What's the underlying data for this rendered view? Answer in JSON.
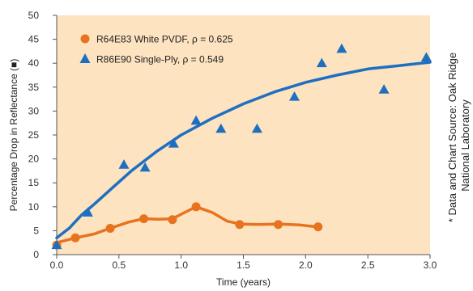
{
  "chart_data": {
    "type": "scatter",
    "xlabel": "Time (years)",
    "ylabel": "Percentage Drop in Reflectance (■)",
    "xlim": [
      0,
      3.0
    ],
    "ylim": [
      0,
      50
    ],
    "x_ticks": [
      "0.0",
      "0.5",
      "1.0",
      "1.5",
      "2.0",
      "2.5",
      "3.0"
    ],
    "y_ticks": [
      "0",
      "5",
      "10",
      "15",
      "20",
      "25",
      "30",
      "35",
      "40",
      "45",
      "50"
    ],
    "grid": false,
    "legend_position": "top-left",
    "background_color": "#fde3c0",
    "series": [
      {
        "name": "R64E83 White PVDF, ρ = 0.625",
        "color": "#e8731f",
        "marker": "circle",
        "points": [
          {
            "x": 0.0,
            "y": 2.0
          },
          {
            "x": 0.15,
            "y": 3.5
          },
          {
            "x": 0.43,
            "y": 5.5
          },
          {
            "x": 0.7,
            "y": 7.5
          },
          {
            "x": 0.93,
            "y": 7.3
          },
          {
            "x": 1.12,
            "y": 10.0
          },
          {
            "x": 1.47,
            "y": 6.3
          },
          {
            "x": 1.78,
            "y": 6.3
          },
          {
            "x": 2.1,
            "y": 5.8
          }
        ],
        "line": [
          {
            "x": 0.0,
            "y": 2.5
          },
          {
            "x": 0.15,
            "y": 3.5
          },
          {
            "x": 0.3,
            "y": 4.3
          },
          {
            "x": 0.43,
            "y": 5.5
          },
          {
            "x": 0.58,
            "y": 6.8
          },
          {
            "x": 0.7,
            "y": 7.5
          },
          {
            "x": 0.82,
            "y": 7.4
          },
          {
            "x": 0.93,
            "y": 7.5
          },
          {
            "x": 1.02,
            "y": 8.7
          },
          {
            "x": 1.12,
            "y": 10.0
          },
          {
            "x": 1.25,
            "y": 8.8
          },
          {
            "x": 1.37,
            "y": 7.0
          },
          {
            "x": 1.47,
            "y": 6.4
          },
          {
            "x": 1.62,
            "y": 6.3
          },
          {
            "x": 1.78,
            "y": 6.4
          },
          {
            "x": 1.95,
            "y": 6.2
          },
          {
            "x": 2.1,
            "y": 5.8
          }
        ]
      },
      {
        "name": "R86E90 Single-Ply, ρ = 0.549",
        "color": "#1f6fc0",
        "marker": "triangle",
        "points": [
          {
            "x": 0.0,
            "y": 2.0
          },
          {
            "x": 0.25,
            "y": 8.8
          },
          {
            "x": 0.54,
            "y": 18.8
          },
          {
            "x": 0.71,
            "y": 18.2
          },
          {
            "x": 0.94,
            "y": 23.2
          },
          {
            "x": 1.12,
            "y": 28.0
          },
          {
            "x": 1.32,
            "y": 26.3
          },
          {
            "x": 1.61,
            "y": 26.3
          },
          {
            "x": 1.91,
            "y": 33.0
          },
          {
            "x": 2.13,
            "y": 40.0
          },
          {
            "x": 2.29,
            "y": 43.0
          },
          {
            "x": 2.63,
            "y": 34.5
          },
          {
            "x": 2.97,
            "y": 41.2
          }
        ],
        "line": [
          {
            "x": 0.0,
            "y": 3.5
          },
          {
            "x": 0.1,
            "y": 5.5
          },
          {
            "x": 0.2,
            "y": 8.3
          },
          {
            "x": 0.3,
            "y": 10.5
          },
          {
            "x": 0.45,
            "y": 14.0
          },
          {
            "x": 0.6,
            "y": 17.5
          },
          {
            "x": 0.8,
            "y": 21.5
          },
          {
            "x": 1.0,
            "y": 25.0
          },
          {
            "x": 1.25,
            "y": 28.5
          },
          {
            "x": 1.5,
            "y": 31.5
          },
          {
            "x": 1.75,
            "y": 34.0
          },
          {
            "x": 2.0,
            "y": 36.0
          },
          {
            "x": 2.25,
            "y": 37.5
          },
          {
            "x": 2.5,
            "y": 38.8
          },
          {
            "x": 2.75,
            "y": 39.5
          },
          {
            "x": 3.0,
            "y": 40.2
          }
        ]
      }
    ]
  },
  "annotation": {
    "line1": "* Data and Chart Source: Oak Ridge",
    "line2": "National Laboratory"
  }
}
